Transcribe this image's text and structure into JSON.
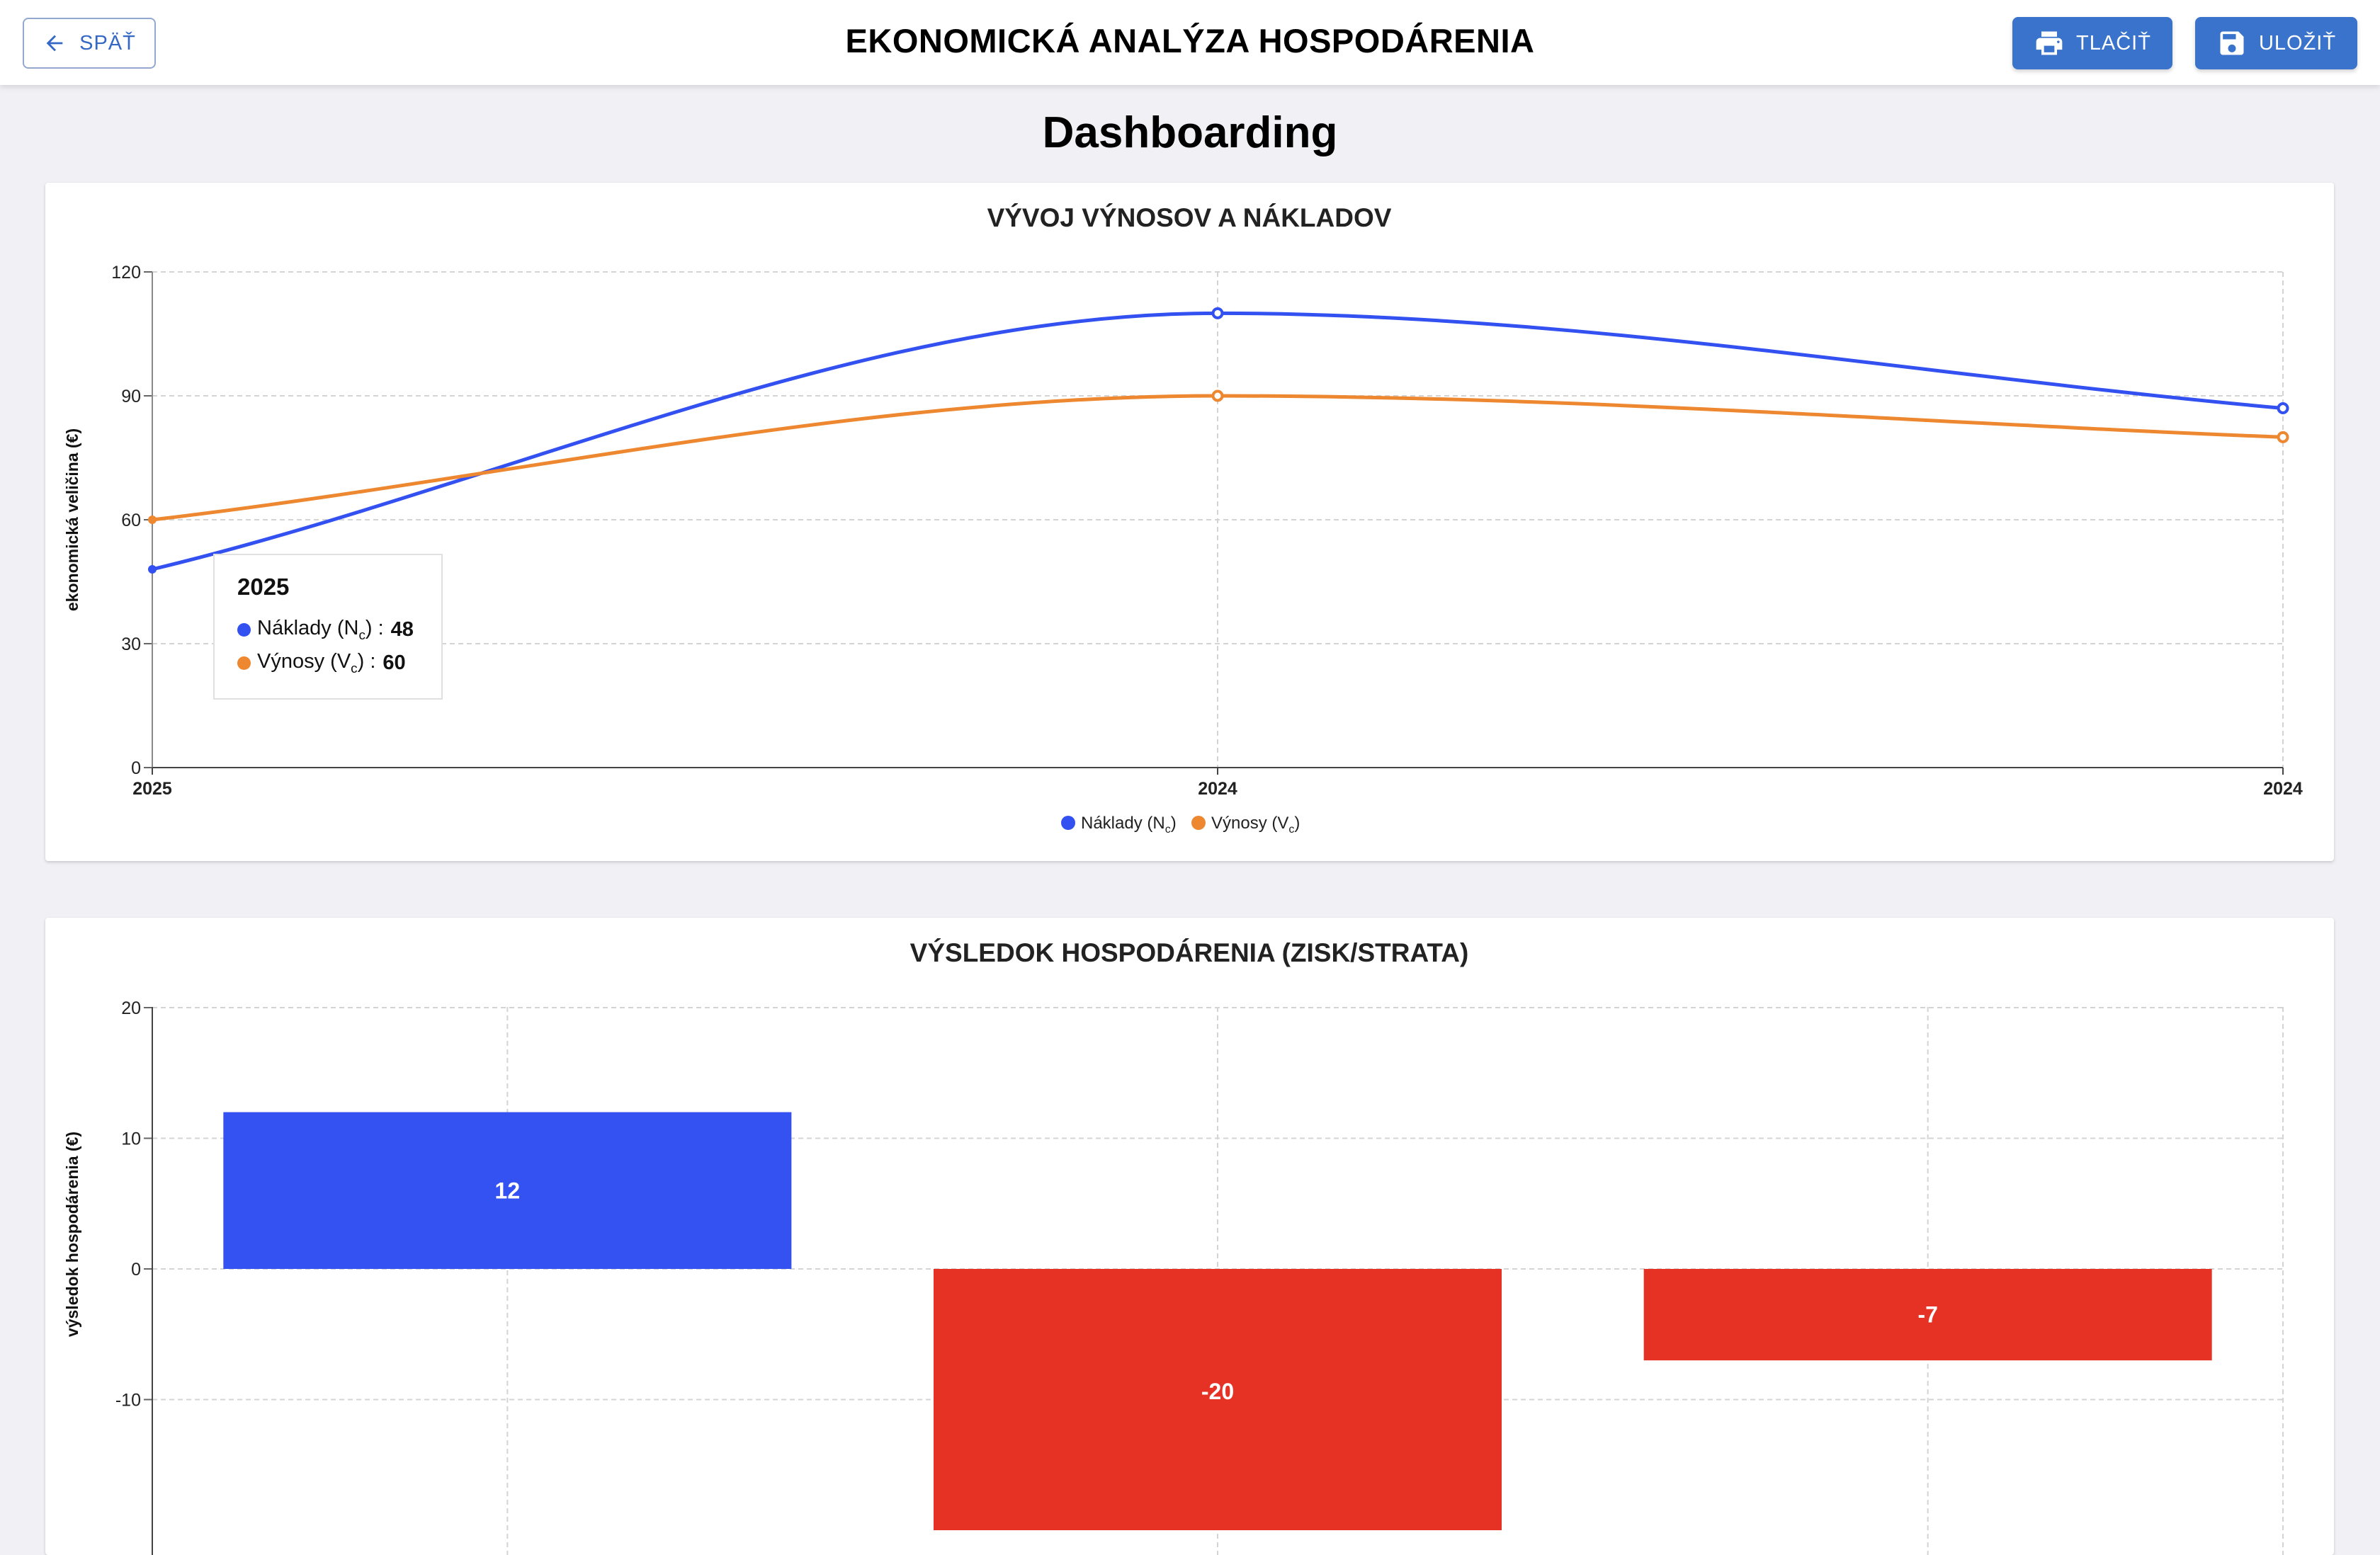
{
  "header": {
    "back_label": "SPÄŤ",
    "title": "EKONOMICKÁ ANALÝZA HOSPODÁRENIA",
    "print_label": "TLAČIŤ",
    "save_label": "ULOŽIŤ",
    "accent": "#3a73cc"
  },
  "page": {
    "title": "Dashboarding"
  },
  "tooltip": {
    "title": "2025",
    "rows": [
      {
        "name": "Náklady (N",
        "sub": "c",
        "close": ")",
        "sep": " :",
        "value": "48",
        "color": "#3350f0"
      },
      {
        "name": "Výnosy (V",
        "sub": "c",
        "close": ")",
        "sep": " :",
        "value": "60",
        "color": "#ed8730"
      }
    ]
  },
  "chart_data": [
    {
      "type": "line",
      "title": "VÝVOJ VÝNOSOV A NÁKLADOV",
      "xlabel": "",
      "ylabel": "ekonomická veličina (€)",
      "categories": [
        "2025",
        "2024",
        "2024"
      ],
      "ylim": [
        0,
        120
      ],
      "yticks": [
        0,
        30,
        60,
        90,
        120
      ],
      "grid": true,
      "legend": "bottom",
      "series": [
        {
          "name": "Náklady (Nc)",
          "label": "Náklady (N",
          "sub": "c",
          "values": [
            48,
            110,
            87
          ],
          "color": "#3350f0"
        },
        {
          "name": "Výnosy (Vc)",
          "label": "Výnosy (V",
          "sub": "c",
          "values": [
            60,
            90,
            80
          ],
          "color": "#ed8730"
        }
      ]
    },
    {
      "type": "bar",
      "title": "VÝSLEDOK HOSPODÁRENIA (ZISK/STRATA)",
      "xlabel": "",
      "ylabel": "výsledok hospodárenia (€)",
      "ylim": [
        -20,
        20
      ],
      "yticks": [
        -10,
        0,
        10,
        20
      ],
      "grid": true,
      "values": [
        12,
        -20,
        -7
      ],
      "value_labels": [
        "12",
        "-20",
        "-7"
      ],
      "positive_color": "#3451f2",
      "negative_color": "#e53224"
    }
  ]
}
